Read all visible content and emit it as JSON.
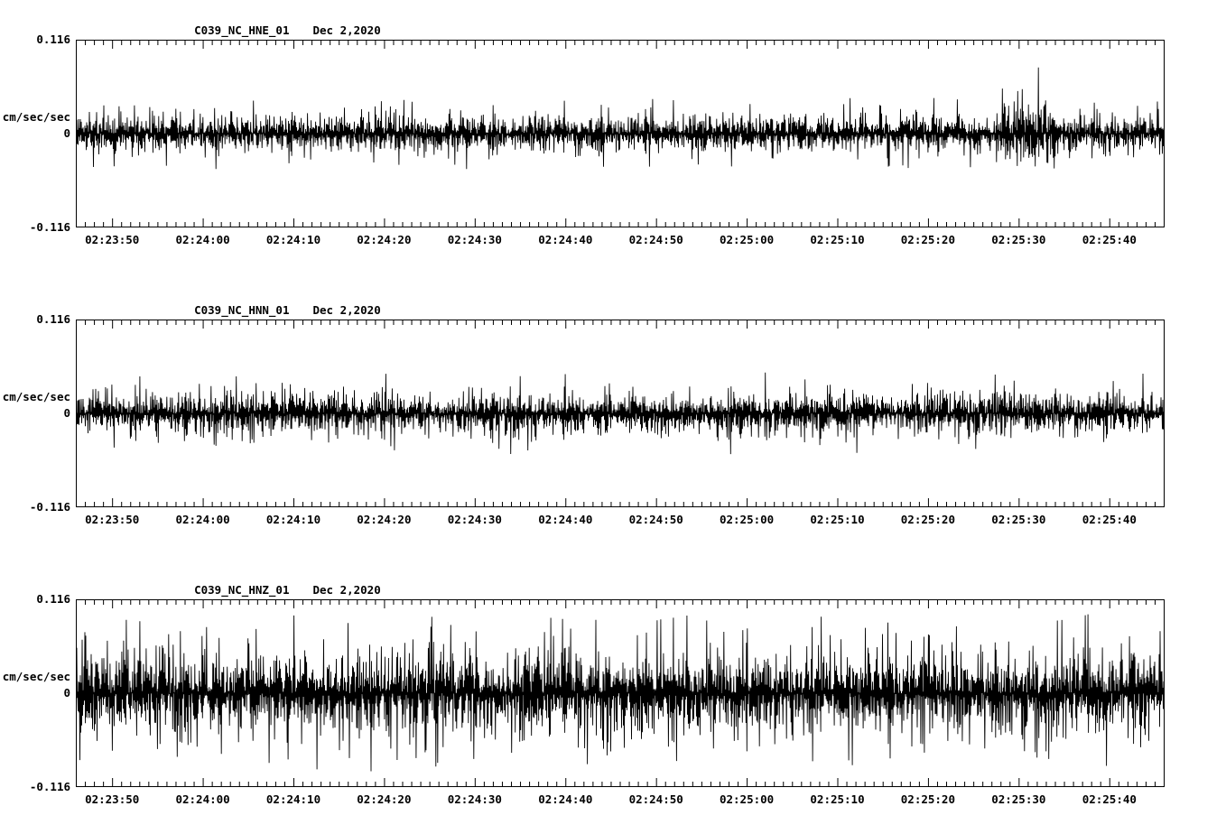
{
  "page": {
    "background": "#ffffff",
    "foreground": "#000000"
  },
  "chart_data": [
    {
      "type": "line",
      "title": "C039_NC_HNE_01",
      "date_label": "Dec 2,2020",
      "ylabel": "cm/sec/sec",
      "ylim": [
        -0.116,
        0.116
      ],
      "ytick_labels": [
        "0.116",
        "0",
        "-0.116"
      ],
      "x_tick_labels": [
        "02:23:50",
        "02:24:00",
        "02:24:10",
        "02:24:20",
        "02:24:30",
        "02:24:40",
        "02:24:50",
        "02:25:00",
        "02:25:10",
        "02:25:20",
        "02:25:30",
        "02:25:40"
      ],
      "x_start_offset_sec": 4,
      "x_major_interval_sec": 10,
      "x_minor_interval_sec": 1,
      "duration_sec": 120,
      "grid": false,
      "legend": false,
      "line_color": "#000000",
      "waveform": {
        "kind": "seismic-noise",
        "seed": 1101,
        "base_amp": 0.021,
        "spike_amp": 0.045,
        "spike_prob": 0.028,
        "burst_start_frac": 0.845,
        "burst_end_frac": 0.9,
        "burst_gain": 1.9
      }
    },
    {
      "type": "line",
      "title": "C039_NC_HNN_01",
      "date_label": "Dec 2,2020",
      "ylabel": "cm/sec/sec",
      "ylim": [
        -0.116,
        0.116
      ],
      "ytick_labels": [
        "0.116",
        "0",
        "-0.116"
      ],
      "x_tick_labels": [
        "02:23:50",
        "02:24:00",
        "02:24:10",
        "02:24:20",
        "02:24:30",
        "02:24:40",
        "02:24:50",
        "02:25:00",
        "02:25:10",
        "02:25:20",
        "02:25:30",
        "02:25:40"
      ],
      "x_start_offset_sec": 4,
      "x_major_interval_sec": 10,
      "x_minor_interval_sec": 1,
      "duration_sec": 120,
      "grid": false,
      "legend": false,
      "line_color": "#000000",
      "waveform": {
        "kind": "seismic-noise",
        "seed": 2202,
        "base_amp": 0.023,
        "spike_amp": 0.052,
        "spike_prob": 0.03,
        "burst_start_frac": 0,
        "burst_end_frac": 0,
        "burst_gain": 1
      }
    },
    {
      "type": "line",
      "title": "C039_NC_HNZ_01",
      "date_label": "Dec 2,2020",
      "ylabel": "cm/sec/sec",
      "ylim": [
        -0.116,
        0.116
      ],
      "ytick_labels": [
        "0.116",
        "0",
        "-0.116"
      ],
      "x_tick_labels": [
        "02:23:50",
        "02:24:00",
        "02:24:10",
        "02:24:20",
        "02:24:30",
        "02:24:40",
        "02:24:50",
        "02:25:00",
        "02:25:10",
        "02:25:20",
        "02:25:30",
        "02:25:40"
      ],
      "x_start_offset_sec": 4,
      "x_major_interval_sec": 10,
      "x_minor_interval_sec": 1,
      "duration_sec": 120,
      "grid": false,
      "legend": false,
      "line_color": "#000000",
      "waveform": {
        "kind": "seismic-noise",
        "seed": 3303,
        "base_amp": 0.046,
        "spike_amp": 0.1,
        "spike_prob": 0.05,
        "burst_start_frac": 0,
        "burst_end_frac": 0,
        "burst_gain": 1
      }
    }
  ]
}
